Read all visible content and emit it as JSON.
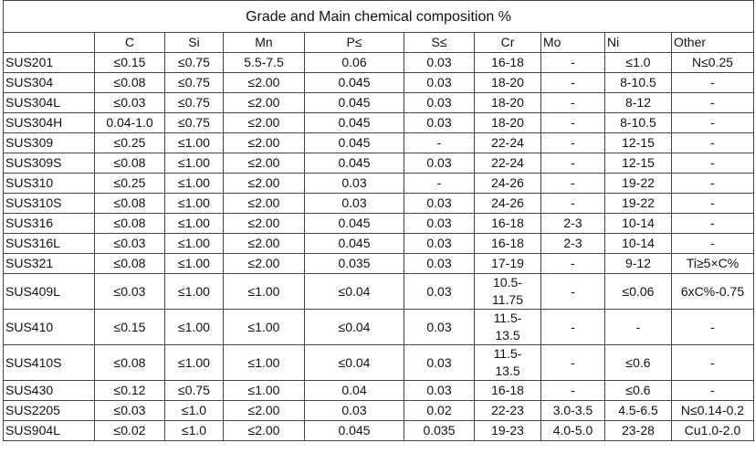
{
  "table": {
    "title": "Grade and Main chemical composition %",
    "headers": [
      "",
      "C",
      "Si",
      "Mn",
      "P≤",
      "S≤",
      "Cr",
      "Mo",
      "Ni",
      "Other"
    ],
    "rows": [
      [
        "SUS201",
        "≤0.15",
        "≤0.75",
        "5.5-7.5",
        "0.06",
        "0.03",
        "16-18",
        "-",
        "≤1.0",
        "N≤0.25"
      ],
      [
        "SUS304",
        "≤0.08",
        "≤0.75",
        "≤2.00",
        "0.045",
        "0.03",
        "18-20",
        "-",
        "8-10.5",
        "-"
      ],
      [
        "SUS304L",
        "≤0.03",
        "≤0.75",
        "≤2.00",
        "0.045",
        "0.03",
        "18-20",
        "-",
        "8-12",
        "-"
      ],
      [
        "SUS304H",
        "0.04-1.0",
        "≤0.75",
        "≤2.00",
        "0.045",
        "0.03",
        "18-20",
        "-",
        "8-10.5",
        "-"
      ],
      [
        "SUS309",
        "≤0.25",
        "≤1.00",
        "≤2.00",
        "0.045",
        "-",
        "22-24",
        "-",
        "12-15",
        "-"
      ],
      [
        "SUS309S",
        "≤0.08",
        "≤1.00",
        "≤2.00",
        "0.045",
        "0.03",
        "22-24",
        "-",
        "12-15",
        "-"
      ],
      [
        "SUS310",
        "≤0.25",
        "≤1.00",
        "≤2.00",
        "0.03",
        "-",
        "24-26",
        "-",
        "19-22",
        "-"
      ],
      [
        "SUS310S",
        "≤0.08",
        "≤1.00",
        "≤2.00",
        "0.03",
        "0.03",
        "24-26",
        "-",
        "19-22",
        "-"
      ],
      [
        "SUS316",
        "≤0.08",
        "≤1.00",
        "≤2.00",
        "0.045",
        "0.03",
        "16-18",
        "2-3",
        "10-14",
        "-"
      ],
      [
        "SUS316L",
        "≤0.03",
        "≤1.00",
        "≤2.00",
        "0.045",
        "0.03",
        "16-18",
        "2-3",
        "10-14",
        "-"
      ],
      [
        "SUS321",
        "≤0.08",
        "≤1.00",
        "≤2.00",
        "0.035",
        "0.03",
        "17-19",
        "-",
        "9-12",
        "Ti≥5×C%"
      ],
      [
        "SUS409L",
        "≤0.03",
        "≤1.00",
        "≤1.00",
        "≤0.04",
        "0.03",
        "10.5-11.75",
        "-",
        "≤0.06",
        "6xC%-0.75"
      ],
      [
        "SUS410",
        "≤0.15",
        "≤1.00",
        "≤1.00",
        "≤0.04",
        "0.03",
        "11.5-13.5",
        "-",
        "-",
        "-"
      ],
      [
        "SUS410S",
        "≤0.08",
        "≤1.00",
        "≤1.00",
        "≤0.04",
        "0.03",
        "11.5-13.5",
        "-",
        "≤0.6",
        "-"
      ],
      [
        "SUS430",
        "≤0.12",
        "≤0.75",
        "≤1.00",
        "0.04",
        "0.03",
        "16-18",
        "-",
        "≤0.6",
        "-"
      ],
      [
        "SUS2205",
        "≤0.03",
        "≤1.0",
        "≤2.00",
        "0.03",
        "0.02",
        "22-23",
        "3.0-3.5",
        "4.5-6.5",
        "N≤0.14-0.2"
      ],
      [
        "SUS904L",
        "≤0.02",
        "≤1.0",
        "≤2.00",
        "0.045",
        "0.035",
        "19-23",
        "4.0-5.0",
        "23-28",
        "Cu1.0-2.0"
      ]
    ]
  }
}
